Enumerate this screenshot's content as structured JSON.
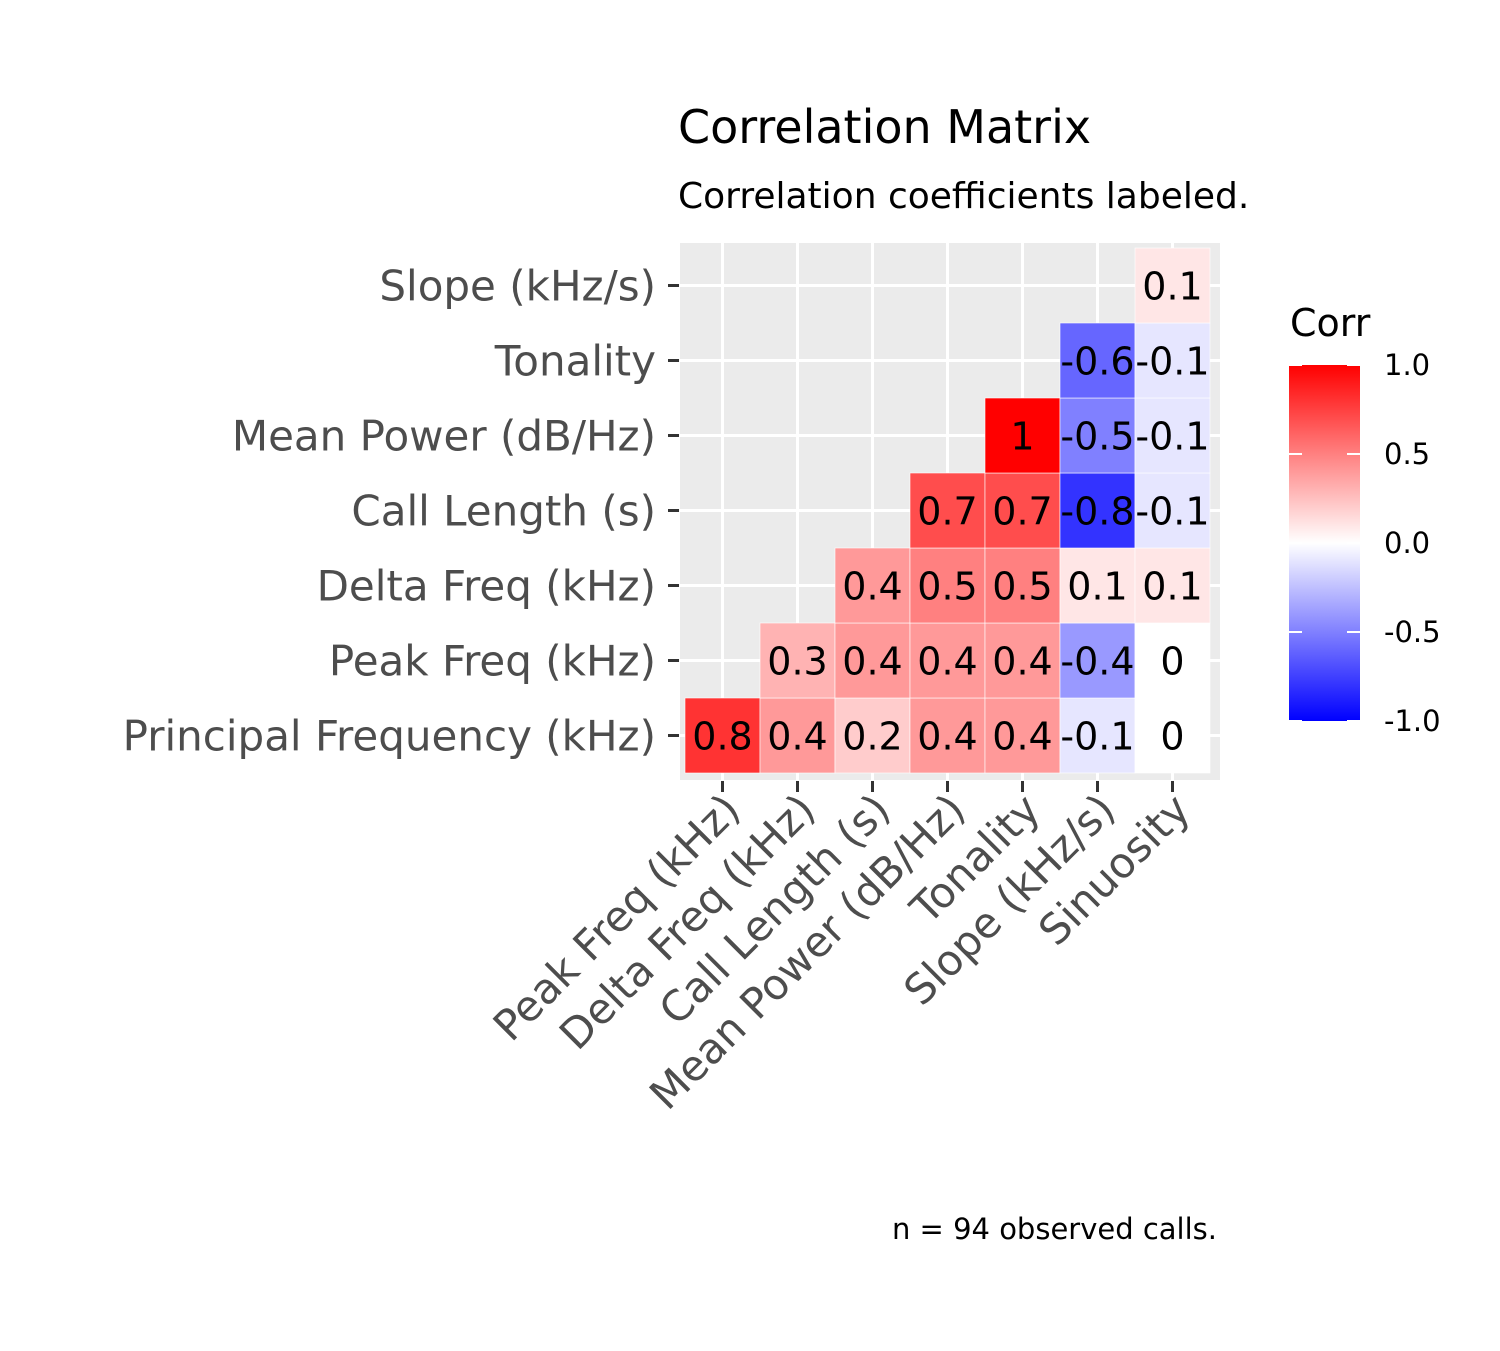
{
  "chart_data": {
    "type": "heatmap",
    "title": "Correlation Matrix",
    "subtitle": "Correlation coefficients labeled.",
    "caption": "n = 94 observed calls.",
    "x_labels": [
      "Peak Freq (kHz)",
      "Delta Freq (kHz)",
      "Call Length (s)",
      "Mean Power (dB/Hz)",
      "Tonality",
      "Slope (kHz/s)",
      "Sinuosity"
    ],
    "y_labels": [
      "Principal Frequency (kHz)",
      "Peak Freq (kHz)",
      "Delta Freq (kHz)",
      "Call Length (s)",
      "Mean Power (dB/Hz)",
      "Tonality",
      "Slope (kHz/s)"
    ],
    "cells": [
      {
        "x": "Peak Freq (kHz)",
        "y": "Principal Frequency (kHz)",
        "value": 0.8,
        "label": "0.8"
      },
      {
        "x": "Delta Freq (kHz)",
        "y": "Principal Frequency (kHz)",
        "value": 0.4,
        "label": "0.4"
      },
      {
        "x": "Call Length (s)",
        "y": "Principal Frequency (kHz)",
        "value": 0.2,
        "label": "0.2"
      },
      {
        "x": "Mean Power (dB/Hz)",
        "y": "Principal Frequency (kHz)",
        "value": 0.4,
        "label": "0.4"
      },
      {
        "x": "Tonality",
        "y": "Principal Frequency (kHz)",
        "value": 0.4,
        "label": "0.4"
      },
      {
        "x": "Slope (kHz/s)",
        "y": "Principal Frequency (kHz)",
        "value": -0.1,
        "label": "-0.1"
      },
      {
        "x": "Sinuosity",
        "y": "Principal Frequency (kHz)",
        "value": 0,
        "label": "0"
      },
      {
        "x": "Delta Freq (kHz)",
        "y": "Peak Freq (kHz)",
        "value": 0.3,
        "label": "0.3"
      },
      {
        "x": "Call Length (s)",
        "y": "Peak Freq (kHz)",
        "value": 0.4,
        "label": "0.4"
      },
      {
        "x": "Mean Power (dB/Hz)",
        "y": "Peak Freq (kHz)",
        "value": 0.4,
        "label": "0.4"
      },
      {
        "x": "Tonality",
        "y": "Peak Freq (kHz)",
        "value": 0.4,
        "label": "0.4"
      },
      {
        "x": "Slope (kHz/s)",
        "y": "Peak Freq (kHz)",
        "value": -0.4,
        "label": "-0.4"
      },
      {
        "x": "Sinuosity",
        "y": "Peak Freq (kHz)",
        "value": 0,
        "label": "0"
      },
      {
        "x": "Call Length (s)",
        "y": "Delta Freq (kHz)",
        "value": 0.4,
        "label": "0.4"
      },
      {
        "x": "Mean Power (dB/Hz)",
        "y": "Delta Freq (kHz)",
        "value": 0.5,
        "label": "0.5"
      },
      {
        "x": "Tonality",
        "y": "Delta Freq (kHz)",
        "value": 0.5,
        "label": "0.5"
      },
      {
        "x": "Slope (kHz/s)",
        "y": "Delta Freq (kHz)",
        "value": 0.1,
        "label": "0.1"
      },
      {
        "x": "Sinuosity",
        "y": "Delta Freq (kHz)",
        "value": 0.1,
        "label": "0.1"
      },
      {
        "x": "Mean Power (dB/Hz)",
        "y": "Call Length (s)",
        "value": 0.7,
        "label": "0.7"
      },
      {
        "x": "Tonality",
        "y": "Call Length (s)",
        "value": 0.7,
        "label": "0.7"
      },
      {
        "x": "Slope (kHz/s)",
        "y": "Call Length (s)",
        "value": -0.8,
        "label": "-0.8"
      },
      {
        "x": "Sinuosity",
        "y": "Call Length (s)",
        "value": -0.1,
        "label": "-0.1"
      },
      {
        "x": "Tonality",
        "y": "Mean Power (dB/Hz)",
        "value": 1,
        "label": "1"
      },
      {
        "x": "Slope (kHz/s)",
        "y": "Mean Power (dB/Hz)",
        "value": -0.5,
        "label": "-0.5"
      },
      {
        "x": "Sinuosity",
        "y": "Mean Power (dB/Hz)",
        "value": -0.1,
        "label": "-0.1"
      },
      {
        "x": "Slope (kHz/s)",
        "y": "Tonality",
        "value": -0.6,
        "label": "-0.6"
      },
      {
        "x": "Sinuosity",
        "y": "Tonality",
        "value": -0.1,
        "label": "-0.1"
      },
      {
        "x": "Sinuosity",
        "y": "Slope (kHz/s)",
        "value": 0.1,
        "label": "0.1"
      }
    ],
    "legend": {
      "title": "Corr",
      "placement": "right",
      "range": [
        -1,
        1
      ],
      "ticks": [
        1.0,
        0.5,
        0.0,
        -0.5,
        -1.0
      ],
      "tick_labels": [
        "1.0",
        "0.5",
        "0.0",
        "-0.5",
        "-1.0"
      ]
    },
    "colors": {
      "low": "#0000ff",
      "mid": "#ffffff",
      "high": "#ff0000",
      "panel_background": "#ebebeb",
      "grid": "#ffffff",
      "axis_text": "#4d4d4d"
    },
    "grid": true
  }
}
